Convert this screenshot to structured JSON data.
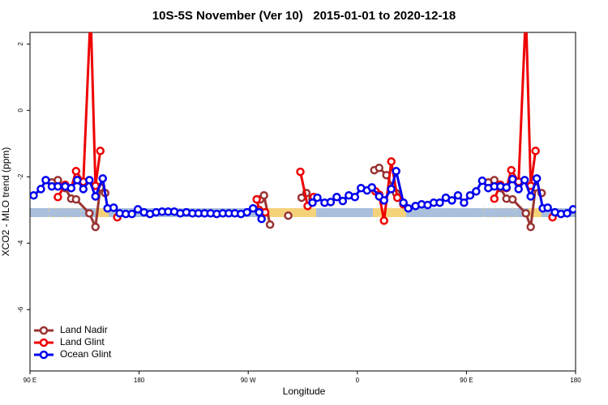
{
  "chart_data": {
    "type": "line",
    "title": "10S-5S November (Ver 10)   2015-01-01 to 2020-12-18",
    "x_label": "Longitude",
    "y_label": "XCO2 - MLO trend (ppm)",
    "xlim": [
      90,
      540
    ],
    "xticks": [
      {
        "value": 90,
        "label": "90 E"
      },
      180,
      {
        "value": 270,
        "label": "90 W"
      },
      {
        "value": 360,
        "label": "0"
      },
      {
        "value": 450,
        "label": "90 E"
      },
      {
        "value": 540,
        "label": "180"
      }
    ],
    "ylim": [
      -7.85,
      2.35
    ],
    "yticks": [
      2,
      0,
      -2,
      -4,
      -6
    ],
    "legend": "bottom-left",
    "series": [
      {
        "name": "Land Nadir",
        "color": "#993333",
        "x": [
          108,
          113,
          119,
          124,
          128,
          139,
          144,
          148,
          152,
          200,
          280,
          283,
          288,
          300,
          303,
          340,
          314,
          318,
          323,
          350,
          374,
          378,
          384,
          392,
          398,
          450,
          468,
          473,
          478,
          483,
          488,
          499,
          503,
          507,
          512
        ],
        "values": [
          -2.17,
          -2.1,
          -2.34,
          -2.66,
          -2.68,
          -3.1,
          -3.51,
          -2.32,
          -2.49,
          null,
          -2.68,
          -2.56,
          -3.44,
          null,
          -3.17,
          null,
          -2.63,
          -2.49,
          -2.66,
          null,
          -1.8,
          -1.73,
          -1.95,
          -2.49,
          -2.78,
          null,
          -2.17,
          -2.1,
          -2.34,
          -2.66,
          -2.68,
          -3.1,
          -3.51,
          -2.32,
          -2.49
        ]
      },
      {
        "name": "Land Glint",
        "color": "#ee0000",
        "x": [
          113,
          119,
          124,
          128,
          134,
          140,
          144,
          148,
          150,
          162,
          200,
          277,
          279,
          284,
          300,
          313,
          319,
          324,
          350,
          375,
          378,
          382,
          388,
          393,
          398,
          450,
          473,
          478,
          483,
          487,
          493,
          499,
          503,
          507,
          510,
          521
        ],
        "values": [
          -2.61,
          -2.24,
          -2.34,
          -1.83,
          -2.15,
          3.0,
          -2.27,
          -1.22,
          null,
          -3.22,
          null,
          -2.68,
          -3.0,
          -3.07,
          null,
          -1.85,
          -2.88,
          -2.61,
          null,
          -2.44,
          -2.54,
          -3.32,
          -1.54,
          -2.63,
          -2.83,
          null,
          -2.66,
          -2.24,
          -2.34,
          -1.8,
          -2.15,
          3.0,
          -2.27,
          -1.22,
          null,
          -3.22
        ]
      },
      {
        "name": "Ocean Glint",
        "color": "#0000ee",
        "x": [
          93,
          99,
          103,
          108,
          113,
          119,
          124,
          129,
          134,
          139,
          144,
          150,
          154,
          159,
          164,
          169,
          174,
          179,
          184,
          189,
          194,
          199,
          204,
          209,
          214,
          219,
          224,
          229,
          234,
          239,
          244,
          249,
          254,
          259,
          264,
          269,
          274,
          279,
          281,
          300,
          323,
          327,
          333,
          338,
          343,
          348,
          353,
          358,
          363,
          368,
          372,
          378,
          382,
          388,
          392,
          398,
          402,
          408,
          413,
          418,
          423,
          428,
          433,
          438,
          443,
          448,
          453,
          458,
          463,
          468,
          473,
          478,
          483,
          488,
          493,
          498,
          503,
          508,
          513,
          517,
          523,
          528,
          533,
          538
        ],
        "values": [
          -2.56,
          -2.37,
          -2.1,
          -2.29,
          -2.29,
          -2.29,
          -2.34,
          -2.1,
          -2.37,
          -2.1,
          -2.59,
          -2.05,
          -2.95,
          -2.93,
          -3.1,
          -3.12,
          -3.12,
          -2.98,
          -3.07,
          -3.12,
          -3.07,
          -3.05,
          -3.05,
          -3.05,
          -3.1,
          -3.07,
          -3.1,
          -3.1,
          -3.1,
          -3.1,
          -3.12,
          -3.1,
          -3.1,
          -3.1,
          -3.12,
          -3.07,
          -2.95,
          -3.07,
          -3.27,
          null,
          -2.78,
          -2.63,
          -2.78,
          -2.76,
          -2.61,
          -2.73,
          -2.56,
          -2.61,
          -2.34,
          -2.41,
          -2.32,
          -2.59,
          -2.71,
          -2.37,
          -1.83,
          -2.78,
          -2.95,
          -2.88,
          -2.83,
          -2.85,
          -2.78,
          -2.78,
          -2.63,
          -2.71,
          -2.56,
          -2.78,
          -2.56,
          -2.44,
          -2.12,
          -2.34,
          -2.29,
          -2.29,
          -2.32,
          -2.07,
          -2.37,
          -2.1,
          -2.59,
          -2.05,
          -2.95,
          -2.93,
          -3.07,
          -3.12,
          -3.1,
          -2.98
        ]
      }
    ]
  }
}
